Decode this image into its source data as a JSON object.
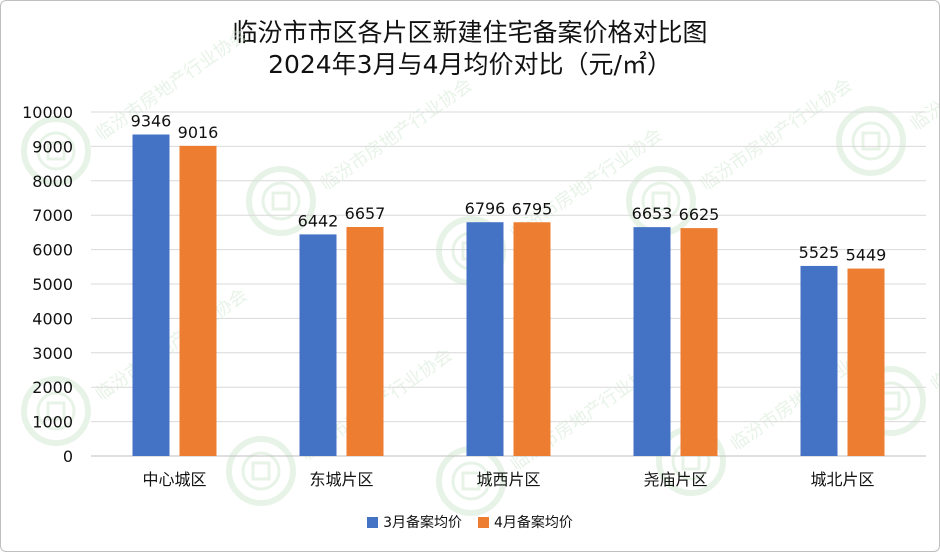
{
  "colors": {
    "series1": "#4472c4",
    "series2": "#ed7d31",
    "gridline": "#d9d9d9",
    "axis": "#bfbfbf",
    "watermark": "#d6ead6"
  },
  "watermark": {
    "text": "临汾市房地产行业协会",
    "subtext": "Linfen Real Estate Industry Association"
  },
  "chart_data": {
    "type": "bar",
    "title": "临汾市市区各片区新建住宅备案价格对比图",
    "subtitle": "2024年3月与4月均价对比（元/㎡）",
    "categories": [
      "中心城区",
      "东城片区",
      "城西片区",
      "尧庙片区",
      "城北片区"
    ],
    "series": [
      {
        "name": "3月备案均价",
        "values": [
          9346,
          6442,
          6796,
          6653,
          5525
        ]
      },
      {
        "name": "4月备案均价",
        "values": [
          9016,
          6657,
          6795,
          6625,
          5449
        ]
      }
    ],
    "ylim": [
      0,
      10000
    ],
    "yticks": [
      0,
      1000,
      2000,
      3000,
      4000,
      5000,
      6000,
      7000,
      8000,
      9000,
      10000
    ],
    "grid": true,
    "legend_position": "bottom"
  }
}
